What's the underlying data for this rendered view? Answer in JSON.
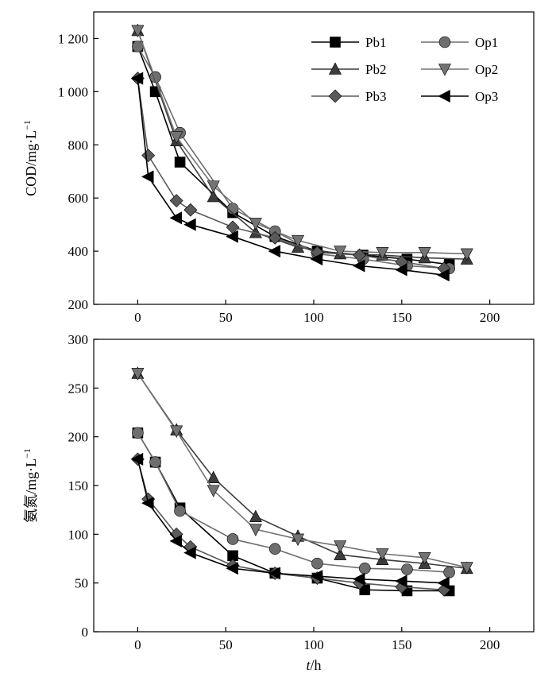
{
  "chart_data": [
    {
      "type": "line",
      "title": "",
      "xlabel": "",
      "ylabel": "COD/mg·L",
      "ylabel_sup": "−1",
      "xlim": [
        -25,
        225
      ],
      "ylim": [
        200,
        1300
      ],
      "xticks": [
        0,
        50,
        100,
        150,
        200
      ],
      "yticks": [
        200,
        400,
        600,
        800,
        1000,
        1200
      ],
      "ytick_labels": [
        "200",
        "400",
        "600",
        "800",
        "1 000",
        "1 200"
      ],
      "legend_position": "top-right",
      "series": [
        {
          "name": "Pb1",
          "marker": "square",
          "color": "#000000",
          "x": [
            0,
            10,
            24,
            54,
            78,
            102,
            128,
            153,
            177
          ],
          "y": [
            1170,
            1000,
            735,
            545,
            455,
            400,
            385,
            370,
            350
          ]
        },
        {
          "name": "Op1",
          "marker": "circle",
          "color": "#6e6e6e",
          "x": [
            0,
            10,
            24,
            54,
            78,
            102,
            128,
            153,
            177
          ],
          "y": [
            1170,
            1055,
            845,
            560,
            475,
            390,
            370,
            345,
            335
          ]
        },
        {
          "name": "Pb2",
          "marker": "triangle-up",
          "color": "#3c3c3c",
          "x": [
            0,
            22,
            43,
            67,
            91,
            115,
            139,
            163,
            187
          ],
          "y": [
            1230,
            815,
            605,
            470,
            415,
            390,
            385,
            375,
            370
          ]
        },
        {
          "name": "Op2",
          "marker": "triangle-down",
          "color": "#737373",
          "x": [
            0,
            22,
            43,
            67,
            91,
            115,
            139,
            163,
            187
          ],
          "y": [
            1230,
            830,
            645,
            505,
            440,
            400,
            395,
            395,
            390
          ]
        },
        {
          "name": "Pb3",
          "marker": "diamond",
          "color": "#5a5a5a",
          "x": [
            0,
            6,
            22,
            30,
            54,
            78,
            102,
            126,
            150,
            174
          ],
          "y": [
            1050,
            760,
            590,
            555,
            490,
            450,
            395,
            385,
            360,
            335
          ]
        },
        {
          "name": "Op3",
          "marker": "triangle-left",
          "color": "#000000",
          "x": [
            0,
            6,
            22,
            30,
            54,
            78,
            102,
            126,
            150,
            174
          ],
          "y": [
            1050,
            680,
            525,
            500,
            455,
            400,
            370,
            345,
            330,
            310
          ]
        }
      ]
    },
    {
      "type": "line",
      "title": "",
      "xlabel_italic": "t",
      "xlabel": "/h",
      "ylabel": "氨氮/mg·L",
      "ylabel_sup": "−1",
      "xlim": [
        -25,
        225
      ],
      "ylim": [
        0,
        300
      ],
      "xticks": [
        0,
        50,
        100,
        150,
        200
      ],
      "yticks": [
        0,
        50,
        100,
        150,
        200,
        250,
        300
      ],
      "ytick_labels": [
        "0",
        "50",
        "100",
        "150",
        "200",
        "250",
        "300"
      ],
      "series": [
        {
          "name": "Pb1",
          "marker": "square",
          "color": "#000000",
          "x": [
            0,
            10,
            24,
            54,
            78,
            102,
            129,
            153,
            177
          ],
          "y": [
            204,
            174,
            127,
            78,
            60,
            55,
            43,
            42,
            42
          ]
        },
        {
          "name": "Op1",
          "marker": "circle",
          "color": "#6e6e6e",
          "x": [
            0,
            10,
            24,
            54,
            78,
            102,
            129,
            153,
            177
          ],
          "y": [
            204,
            174,
            124,
            95,
            85,
            70,
            65,
            64,
            61
          ]
        },
        {
          "name": "Pb2",
          "marker": "triangle-up",
          "color": "#3c3c3c",
          "x": [
            0,
            22,
            43,
            67,
            91,
            115,
            139,
            163,
            187
          ],
          "y": [
            265,
            207,
            158,
            118,
            98,
            79,
            74,
            70,
            65
          ]
        },
        {
          "name": "Op2",
          "marker": "triangle-down",
          "color": "#737373",
          "x": [
            0,
            22,
            43,
            67,
            91,
            115,
            139,
            163,
            187
          ],
          "y": [
            265,
            206,
            145,
            105,
            95,
            88,
            80,
            76,
            66
          ]
        },
        {
          "name": "Pb3",
          "marker": "diamond",
          "color": "#5a5a5a",
          "x": [
            0,
            6,
            22,
            30,
            54,
            78,
            102,
            126,
            150,
            174
          ],
          "y": [
            177,
            136,
            100,
            87,
            68,
            60,
            55,
            50,
            46,
            43
          ]
        },
        {
          "name": "Op3",
          "marker": "triangle-left",
          "color": "#000000",
          "x": [
            0,
            6,
            22,
            30,
            54,
            78,
            102,
            126,
            150,
            174
          ],
          "y": [
            177,
            132,
            93,
            81,
            65,
            60,
            57,
            54,
            52,
            50
          ]
        }
      ]
    }
  ]
}
